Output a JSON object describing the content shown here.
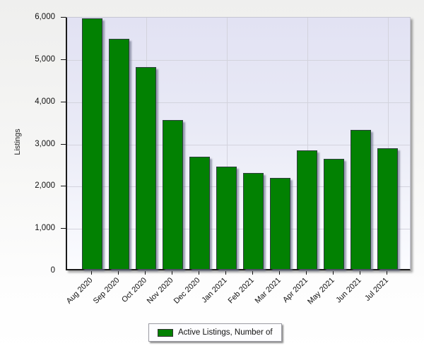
{
  "chart_data": {
    "type": "bar",
    "title": "",
    "xlabel": "",
    "ylabel": "Listings",
    "ylim": [
      0,
      6000
    ],
    "grid": "horizontal gridlines at every 1000; vertical gridlines at quarterly categories",
    "legend_position": "bottom-center",
    "categories": [
      "Aug 2020",
      "Sep 2020",
      "Oct 2020",
      "Nov 2020",
      "Dec 2020",
      "Jan 2021",
      "Feb 2021",
      "Mar 2021",
      "Apr 2021",
      "May 2021",
      "Jun 2021",
      "Jul 2021"
    ],
    "series": [
      {
        "name": "Active Listings, Number of",
        "values": [
          5940,
          5450,
          4780,
          3520,
          2650,
          2420,
          2270,
          2150,
          2810,
          2600,
          3300,
          2850
        ]
      }
    ],
    "ytick_values": [
      0,
      1000,
      2000,
      3000,
      4000,
      5000,
      6000
    ],
    "ytick_labels": [
      "0",
      "1,000",
      "2,000",
      "3,000",
      "4,000",
      "5,000",
      "6,000"
    ],
    "vertical_gridline_categories": [
      "Oct 2020",
      "Jan 2021",
      "Apr 2021",
      "Jul 2021"
    ],
    "colors": {
      "bar_fill": "#028102",
      "bar_border": "#2e3f3e",
      "plot_background_top": "#e2e2f3",
      "plot_background_bottom": "#fbfcff",
      "gridline": "#d3d3dd"
    }
  }
}
